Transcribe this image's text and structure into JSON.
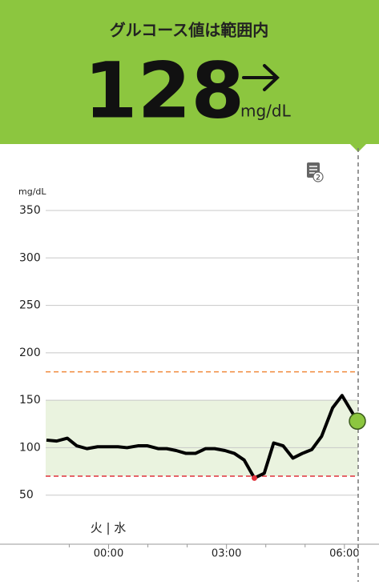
{
  "header": {
    "title": "グルコース値は範囲内",
    "value": "128",
    "unit": "mg/dL",
    "notes_badge": "2"
  },
  "chart_data": {
    "type": "line",
    "y_label": "mg/dL",
    "day_labels": "火 | 水",
    "x": [
      -1.58,
      -1.32,
      -1.05,
      -0.81,
      -0.55,
      -0.28,
      0.24,
      0.47,
      0.75,
      0.99,
      1.26,
      1.48,
      1.72,
      1.97,
      2.21,
      2.47,
      2.7,
      2.96,
      3.2,
      3.45,
      3.71,
      3.96,
      4.2,
      4.44,
      4.69,
      4.93,
      5.17,
      5.42,
      5.7,
      5.94,
      6.33
    ],
    "values": [
      108,
      107,
      110,
      102,
      99,
      101,
      101,
      100,
      102,
      102,
      99,
      99,
      97,
      94,
      94,
      99,
      99,
      97,
      94,
      87,
      68,
      73,
      105,
      102,
      89,
      94,
      98,
      112,
      142,
      155,
      128
    ],
    "color": "#000000",
    "low_color": "#e0333c",
    "current_color": "#8cc63f",
    "target_range": [
      70,
      150
    ],
    "target_color": "#eaf3df",
    "high_threshold": 180,
    "high_color": "#f08a3c",
    "low_threshold": 70,
    "xlim": [
      -1.6,
      6.35
    ],
    "ylim": [
      0,
      350
    ],
    "xticks": [
      {
        "value": 0,
        "label": "00:00"
      },
      {
        "value": 3,
        "label": "03:00"
      },
      {
        "value": 6,
        "label": "06:00"
      }
    ],
    "minor_xticks": [
      -1,
      1,
      2,
      4,
      5
    ],
    "yticks": [
      50,
      100,
      150,
      200,
      250,
      300,
      350
    ],
    "grid": true
  }
}
